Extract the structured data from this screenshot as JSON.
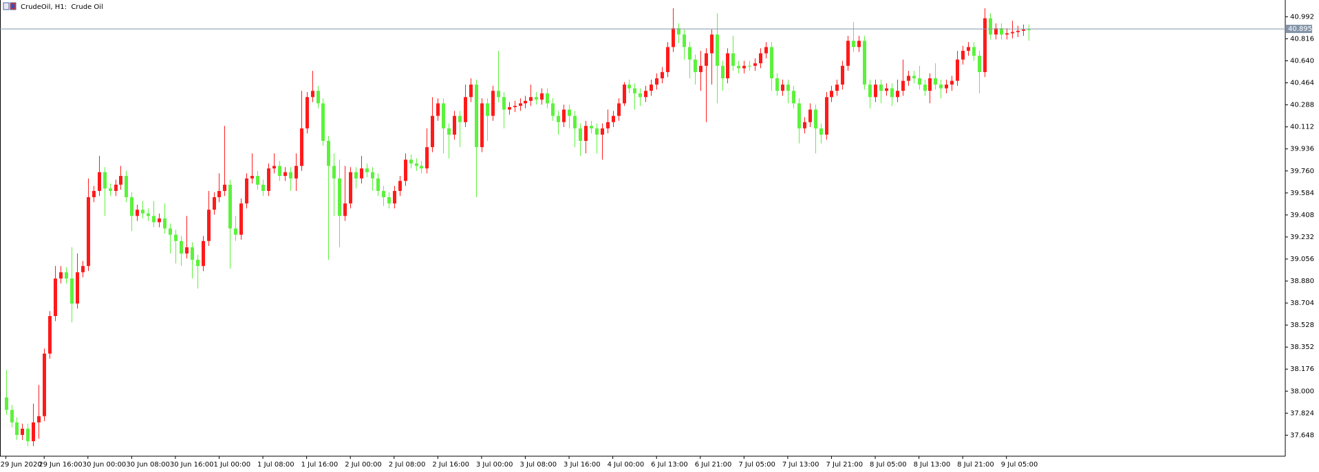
{
  "chart_data": {
    "type": "candlestick",
    "title": "CrudeOil, H1:  Crude Oil",
    "up_color": "#ff1a1a",
    "down_color": "#5cf23c",
    "current_price": 40.895,
    "current_price_color": "#8394a8",
    "xlim": [
      -1.08,
      234
    ],
    "ylim": [
      37.48,
      41.126
    ],
    "yticks": [
      37.648,
      37.824,
      {
        "value": 38,
        "label": "38.000"
      },
      38.176,
      38.352,
      38.528,
      38.704,
      {
        "value": 38.88,
        "label": "38.880"
      },
      39.056,
      39.232,
      39.408,
      39.584,
      {
        "value": 39.76,
        "label": "39.760"
      },
      39.936,
      40.112,
      40.288,
      40.464,
      {
        "value": 40.64,
        "label": "40.640"
      },
      40.816,
      40.992
    ],
    "xticks": [
      {
        "value": 0,
        "label": "29 Jun 2020"
      },
      {
        "value": 7,
        "label": "29 Jun 16:00"
      },
      {
        "value": 15,
        "label": "30 Jun 00:00"
      },
      {
        "value": 23,
        "label": "30 Jun 08:00"
      },
      {
        "value": 31,
        "label": "30 Jun 16:00"
      },
      {
        "value": 39,
        "label": "1 Jul 00:00"
      },
      {
        "value": 47,
        "label": "1 Jul 08:00"
      },
      {
        "value": 55,
        "label": "1 Jul 16:00"
      },
      {
        "value": 63,
        "label": "2 Jul 00:00"
      },
      {
        "value": 71,
        "label": "2 Jul 08:00"
      },
      {
        "value": 79,
        "label": "2 Jul 16:00"
      },
      {
        "value": 87,
        "label": "3 Jul 00:00"
      },
      {
        "value": 95,
        "label": "3 Jul 08:00"
      },
      {
        "value": 103,
        "label": "3 Jul 16:00"
      },
      {
        "value": 111,
        "label": "4 Jul 00:00"
      },
      {
        "value": 119,
        "label": "6 Jul 13:00"
      },
      {
        "value": 127,
        "label": "6 Jul 21:00"
      },
      {
        "value": 135,
        "label": "7 Jul 05:00"
      },
      {
        "value": 143,
        "label": "7 Jul 13:00"
      },
      {
        "value": 151,
        "label": "7 Jul 21:00"
      },
      {
        "value": 159,
        "label": "8 Jul 05:00"
      },
      {
        "value": 167,
        "label": "8 Jul 13:00"
      },
      {
        "value": 175,
        "label": "8 Jul 21:00"
      },
      {
        "value": 183,
        "label": "9 Jul 05:00"
      }
    ],
    "open": [
      37.95,
      37.85,
      37.75,
      37.65,
      37.7,
      37.6,
      37.75,
      37.8,
      38.3,
      38.6,
      38.9,
      38.95,
      38.9,
      38.7,
      38.95,
      39.0,
      39.55,
      39.6,
      39.75,
      39.62,
      39.6,
      39.65,
      39.72,
      39.55,
      39.4,
      39.45,
      39.42,
      39.4,
      39.35,
      39.38,
      39.3,
      39.25,
      39.2,
      39.1,
      39.15,
      39.05,
      39.0,
      39.2,
      39.45,
      39.55,
      39.6,
      39.65,
      39.3,
      39.25,
      39.5,
      39.7,
      39.72,
      39.65,
      39.6,
      39.78,
      39.8,
      39.72,
      39.75,
      39.7,
      39.8,
      40.1,
      40.35,
      40.4,
      40.3,
      40.0,
      39.8,
      39.7,
      39.4,
      39.5,
      39.75,
      39.7,
      39.78,
      39.75,
      39.7,
      39.6,
      39.55,
      39.5,
      39.6,
      39.68,
      39.85,
      39.82,
      39.8,
      39.78,
      39.95,
      40.2,
      40.3,
      40.1,
      40.05,
      40.2,
      40.15,
      40.35,
      40.45,
      39.95,
      40.3,
      40.2,
      40.4,
      40.35,
      40.25,
      40.27,
      40.28,
      40.3,
      40.32,
      40.35,
      40.33,
      40.38,
      40.3,
      40.2,
      40.15,
      40.25,
      40.2,
      40.1,
      40.0,
      40.12,
      40.1,
      40.05,
      40.1,
      40.15,
      40.2,
      40.3,
      40.45,
      40.42,
      40.38,
      40.35,
      40.4,
      40.45,
      40.5,
      40.55,
      40.75,
      40.9,
      40.85,
      40.75,
      40.65,
      40.55,
      40.6,
      40.7,
      40.85,
      40.6,
      40.5,
      40.7,
      40.6,
      40.58,
      40.6,
      40.6,
      40.62,
      40.7,
      40.75,
      40.5,
      40.4,
      40.45,
      40.4,
      40.3,
      40.1,
      40.15,
      40.25,
      40.1,
      40.05,
      40.35,
      40.4,
      40.45,
      40.6,
      40.8,
      40.75,
      40.8,
      40.45,
      40.35,
      40.45,
      40.4,
      40.42,
      40.35,
      40.4,
      40.48,
      40.52,
      40.5,
      40.45,
      40.4,
      40.5,
      40.45,
      40.42,
      40.45,
      40.48,
      40.65,
      40.72,
      40.75,
      40.68,
      40.55,
      40.98,
      40.85,
      40.9,
      40.85,
      40.86,
      40.87,
      40.88,
      40.89
    ],
    "high": [
      38.17,
      37.89,
      37.79,
      37.74,
      37.74,
      37.9,
      38.05,
      38.34,
      38.64,
      39.0,
      39.0,
      38.99,
      39.15,
      39.1,
      39.04,
      39.7,
      39.64,
      39.88,
      39.79,
      39.66,
      39.69,
      39.8,
      39.76,
      39.59,
      39.49,
      39.52,
      39.46,
      39.52,
      39.42,
      39.5,
      39.34,
      39.29,
      39.24,
      39.4,
      39.19,
      39.09,
      39.24,
      39.6,
      39.59,
      39.74,
      40.12,
      39.69,
      39.4,
      39.54,
      39.74,
      39.9,
      39.76,
      39.69,
      39.82,
      39.9,
      39.84,
      39.79,
      39.79,
      39.9,
      40.4,
      40.39,
      40.56,
      40.44,
      40.34,
      40.04,
      39.9,
      39.85,
      39.8,
      39.79,
      39.79,
      39.88,
      39.82,
      39.79,
      39.74,
      39.64,
      39.59,
      39.64,
      39.72,
      39.9,
      39.89,
      39.86,
      39.84,
      40.1,
      40.35,
      40.34,
      40.34,
      40.14,
      40.24,
      40.24,
      40.45,
      40.5,
      40.49,
      40.34,
      40.34,
      40.44,
      40.72,
      40.39,
      40.31,
      40.32,
      40.34,
      40.36,
      40.45,
      40.39,
      40.42,
      40.42,
      40.34,
      40.24,
      40.29,
      40.29,
      40.24,
      40.14,
      40.16,
      40.16,
      40.14,
      40.14,
      40.25,
      40.24,
      40.34,
      40.47,
      40.49,
      40.46,
      40.42,
      40.44,
      40.49,
      40.54,
      40.59,
      40.79,
      41.06,
      40.94,
      40.89,
      40.79,
      40.69,
      40.72,
      40.74,
      40.89,
      41.02,
      40.64,
      40.74,
      40.84,
      40.64,
      40.64,
      40.64,
      40.66,
      40.74,
      40.79,
      40.79,
      40.54,
      40.49,
      40.49,
      40.44,
      40.34,
      40.19,
      40.3,
      40.29,
      40.14,
      40.39,
      40.44,
      40.49,
      40.64,
      40.84,
      40.95,
      40.84,
      40.84,
      40.49,
      40.49,
      40.49,
      40.46,
      40.46,
      40.49,
      40.65,
      40.56,
      40.56,
      40.6,
      40.49,
      40.54,
      40.62,
      40.49,
      40.49,
      40.52,
      40.72,
      40.76,
      40.79,
      40.79,
      40.72,
      41.06,
      41.02,
      40.94,
      40.94,
      40.9,
      40.96,
      40.92,
      40.93,
      40.93
    ],
    "low": [
      37.81,
      37.71,
      37.61,
      37.61,
      37.56,
      37.56,
      37.62,
      37.76,
      38.26,
      38.56,
      38.86,
      38.86,
      38.55,
      38.66,
      38.91,
      38.96,
      39.51,
      39.56,
      39.4,
      39.56,
      39.56,
      39.61,
      39.51,
      39.28,
      39.36,
      39.38,
      39.36,
      39.31,
      39.31,
      39.26,
      39.1,
      39.02,
      39.0,
      39.06,
      38.9,
      38.82,
      38.96,
      39.16,
      39.41,
      39.51,
      39.56,
      38.98,
      39.2,
      39.21,
      39.46,
      39.66,
      39.61,
      39.56,
      39.56,
      39.74,
      39.68,
      39.68,
      39.6,
      39.6,
      39.76,
      40.06,
      40.31,
      40.26,
      39.96,
      39.05,
      39.4,
      39.15,
      39.36,
      39.46,
      39.62,
      39.66,
      39.71,
      39.6,
      39.56,
      39.48,
      39.46,
      39.46,
      39.56,
      39.64,
      39.78,
      39.76,
      39.74,
      39.74,
      39.91,
      40.16,
      39.9,
      39.86,
      40.01,
      39.95,
      40.11,
      40.31,
      39.55,
      39.91,
      40.0,
      40.16,
      40.31,
      40.1,
      40.21,
      40.23,
      40.24,
      40.26,
      40.28,
      40.29,
      40.29,
      40.26,
      40.16,
      40.05,
      40.11,
      40.1,
      39.95,
      39.88,
      39.9,
      40.06,
      39.9,
      39.85,
      40.06,
      40.11,
      40.16,
      40.28,
      40.38,
      40.25,
      40.28,
      40.31,
      40.36,
      40.41,
      40.46,
      40.51,
      40.71,
      40.78,
      40.65,
      40.5,
      40.45,
      40.4,
      40.15,
      40.45,
      40.3,
      40.4,
      40.46,
      40.56,
      40.54,
      40.54,
      40.56,
      40.56,
      40.58,
      40.66,
      40.4,
      40.36,
      40.36,
      40.3,
      40.26,
      39.98,
      40.06,
      40.11,
      39.9,
      39.98,
      40.01,
      40.31,
      40.36,
      40.41,
      40.56,
      40.71,
      40.71,
      40.41,
      40.26,
      40.31,
      40.3,
      40.36,
      40.28,
      40.31,
      40.36,
      40.44,
      40.46,
      40.41,
      40.36,
      40.3,
      40.41,
      40.34,
      40.38,
      40.4,
      40.44,
      40.61,
      40.68,
      40.64,
      40.38,
      40.51,
      40.81,
      40.81,
      40.81,
      40.81,
      40.82,
      40.83,
      40.84,
      40.8
    ],
    "close": [
      37.85,
      37.75,
      37.65,
      37.7,
      37.6,
      37.75,
      37.8,
      38.3,
      38.6,
      38.9,
      38.95,
      38.9,
      38.7,
      38.95,
      39.0,
      39.55,
      39.6,
      39.75,
      39.62,
      39.6,
      39.65,
      39.72,
      39.55,
      39.4,
      39.45,
      39.42,
      39.4,
      39.35,
      39.38,
      39.3,
      39.25,
      39.2,
      39.1,
      39.15,
      39.05,
      39.0,
      39.2,
      39.45,
      39.55,
      39.6,
      39.65,
      39.3,
      39.25,
      39.5,
      39.7,
      39.72,
      39.65,
      39.6,
      39.78,
      39.8,
      39.72,
      39.75,
      39.7,
      39.8,
      40.1,
      40.35,
      40.4,
      40.3,
      40.0,
      39.8,
      39.7,
      39.4,
      39.5,
      39.75,
      39.7,
      39.78,
      39.75,
      39.7,
      39.6,
      39.55,
      39.5,
      39.6,
      39.68,
      39.85,
      39.82,
      39.8,
      39.78,
      39.95,
      40.2,
      40.3,
      40.1,
      40.05,
      40.2,
      40.15,
      40.35,
      40.45,
      39.95,
      40.3,
      40.2,
      40.4,
      40.35,
      40.25,
      40.27,
      40.28,
      40.3,
      40.32,
      40.35,
      40.33,
      40.38,
      40.3,
      40.2,
      40.15,
      40.25,
      40.2,
      40.1,
      40.0,
      40.12,
      40.1,
      40.05,
      40.1,
      40.15,
      40.2,
      40.3,
      40.45,
      40.42,
      40.38,
      40.35,
      40.4,
      40.45,
      40.5,
      40.55,
      40.75,
      40.9,
      40.85,
      40.75,
      40.65,
      40.55,
      40.6,
      40.7,
      40.85,
      40.6,
      40.5,
      40.7,
      40.6,
      40.58,
      40.6,
      40.6,
      40.62,
      40.7,
      40.75,
      40.5,
      40.4,
      40.45,
      40.4,
      40.3,
      40.1,
      40.15,
      40.25,
      40.1,
      40.05,
      40.35,
      40.4,
      40.45,
      40.6,
      40.8,
      40.75,
      40.8,
      40.45,
      40.35,
      40.45,
      40.4,
      40.42,
      40.35,
      40.4,
      40.48,
      40.52,
      40.5,
      40.45,
      40.4,
      40.5,
      40.45,
      40.42,
      40.45,
      40.48,
      40.65,
      40.72,
      40.75,
      40.68,
      40.55,
      40.98,
      40.85,
      40.9,
      40.85,
      40.86,
      40.87,
      40.88,
      40.89,
      40.89
    ]
  }
}
